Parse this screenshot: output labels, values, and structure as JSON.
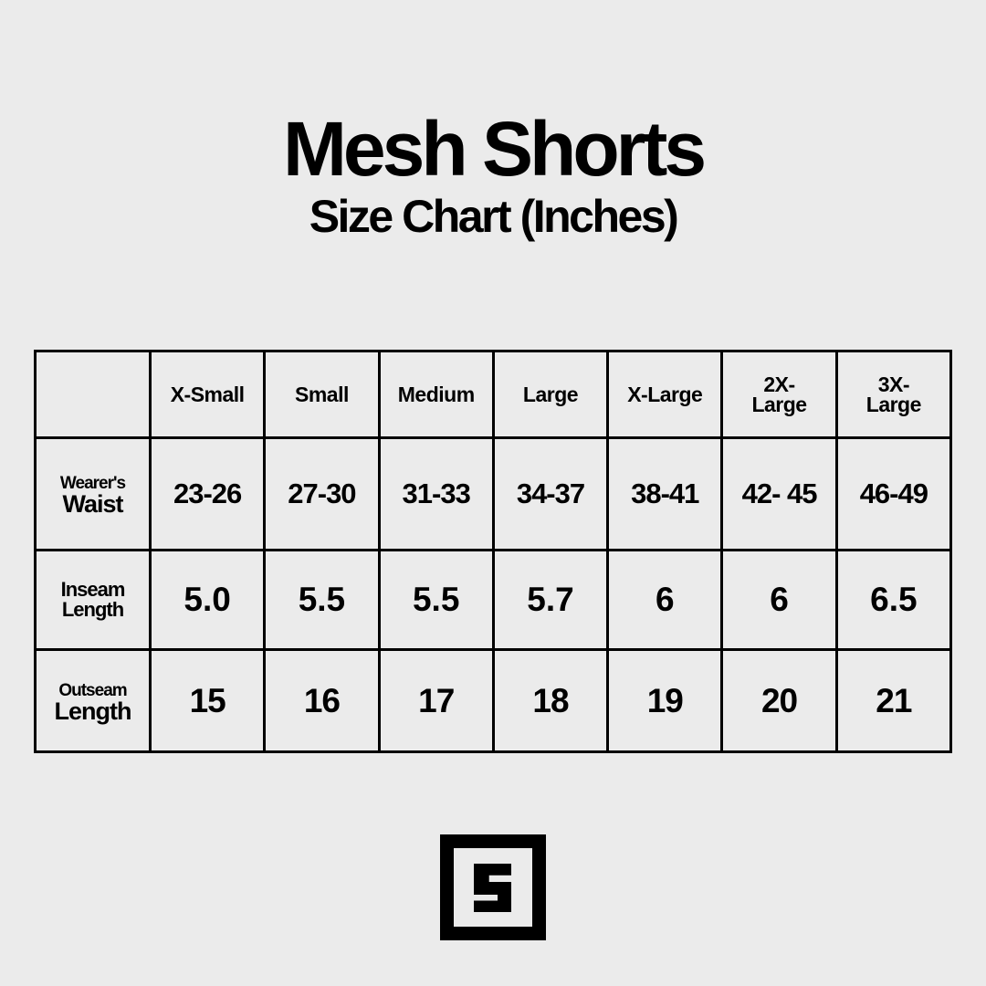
{
  "title": "Mesh Shorts",
  "subtitle": "Size Chart (Inches)",
  "chart_data": {
    "type": "table",
    "title": "Mesh Shorts",
    "subtitle": "Size Chart (Inches)",
    "columns": [
      "X-Small",
      "Small",
      "Medium",
      "Large",
      "X-Large",
      "2X-Large",
      "3X-Large"
    ],
    "rows": [
      {
        "label_top": "Wearer's",
        "label_bottom": "Waist",
        "values": [
          "23-26",
          "27-30",
          "31-33",
          "34-37",
          "38-41",
          "42- 45",
          "46-49"
        ]
      },
      {
        "label_top": "Inseam",
        "label_bottom": "Length",
        "values": [
          "5.0",
          "5.5",
          "5.5",
          "5.7",
          "6",
          "6",
          "6.5"
        ]
      },
      {
        "label_top": "Outseam",
        "label_bottom": "Length",
        "values": [
          "15",
          "16",
          "17",
          "18",
          "19",
          "20",
          "21"
        ]
      }
    ]
  },
  "logo": {
    "icon": "s-square-logo",
    "text": "S"
  },
  "colors": {
    "background": "#ebebeb",
    "ink": "#000000"
  }
}
